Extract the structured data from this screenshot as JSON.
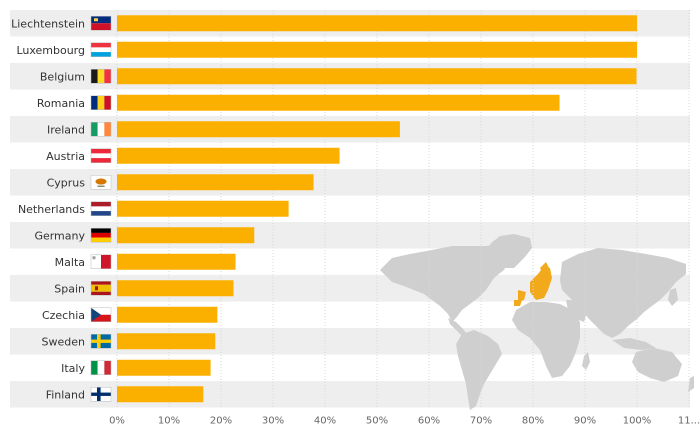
{
  "chart_data": {
    "type": "bar",
    "orientation": "horizontal",
    "categories": [
      "Liechtenstein",
      "Luxembourg",
      "Belgium",
      "Romania",
      "Ireland",
      "Austria",
      "Cyprus",
      "Netherlands",
      "Germany",
      "Malta",
      "Spain",
      "Czechia",
      "Sweden",
      "Italy",
      "Finland"
    ],
    "values": [
      100,
      100,
      99.9,
      85.1,
      54.4,
      42.8,
      37.8,
      33,
      26.4,
      22.8,
      22.4,
      19.3,
      18.9,
      18,
      16.6
    ],
    "flag_icons": [
      "flag-liechtenstein-icon",
      "flag-luxembourg-icon",
      "flag-belgium-icon",
      "flag-romania-icon",
      "flag-ireland-icon",
      "flag-austria-icon",
      "flag-cyprus-icon",
      "flag-netherlands-icon",
      "flag-germany-icon",
      "flag-malta-icon",
      "flag-spain-icon",
      "flag-czechia-icon",
      "flag-sweden-icon",
      "flag-italy-icon",
      "flag-finland-icon"
    ],
    "xticks": [
      "0%",
      "10%",
      "20%",
      "30%",
      "40%",
      "50%",
      "60%",
      "70%",
      "80%",
      "90%",
      "100%",
      "11..."
    ],
    "xlim": [
      0,
      110
    ],
    "title": "",
    "xlabel": "",
    "ylabel": "",
    "grid": true,
    "bar_color": "#FBB000",
    "stripe_color": "#EEEEEE",
    "map_color": "#CFCFCF",
    "highlight_color": "#F2A91C",
    "decoration": "world-map-icon"
  }
}
